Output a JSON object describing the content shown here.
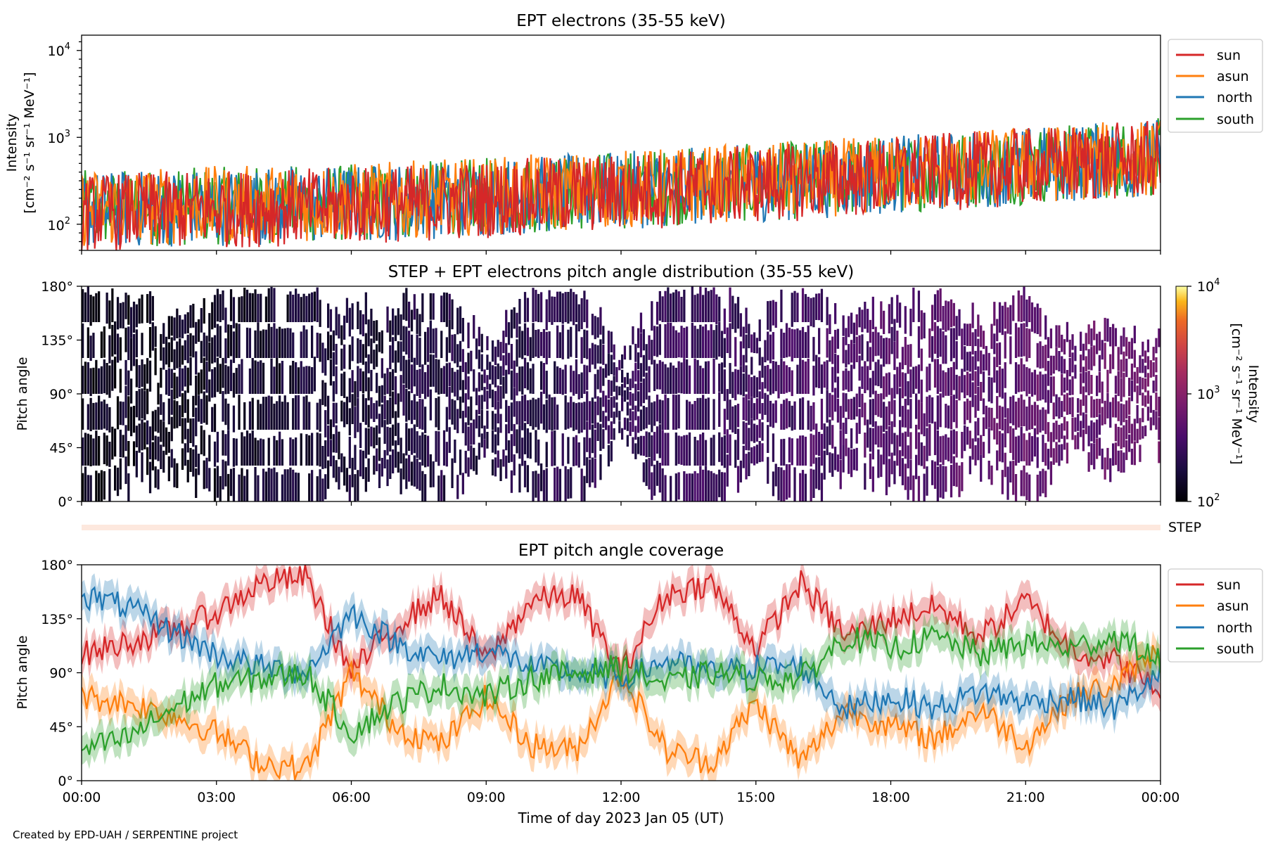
{
  "figure": {
    "footer": "Created by EPD-UAH / SERPENTINE project",
    "xlabel": "Time of day 2023 Jan 05 (UT)",
    "x_ticks": [
      "00:00",
      "03:00",
      "06:00",
      "09:00",
      "12:00",
      "15:00",
      "18:00",
      "21:00",
      "00:00"
    ]
  },
  "colors": {
    "sun": "#d62728",
    "asun": "#ff7f0e",
    "north": "#1f77b4",
    "south": "#2ca02c"
  },
  "chart_data": [
    {
      "type": "line",
      "title": "EPT electrons (35-55 keV)",
      "ylabel_line1": "Intensity",
      "ylabel_line2": "[cm⁻² s⁻¹ sr⁻¹ MeV⁻¹]",
      "yscale": "log",
      "ylim": [
        50,
        15000
      ],
      "y_ticks": [
        "10",
        "10",
        "10"
      ],
      "y_tick_exponents": [
        "2",
        "3",
        "4"
      ],
      "x_range_hours": [
        0,
        24
      ],
      "legend": "top-right (outside)",
      "series": [
        {
          "name": "sun",
          "x_hours": [
            0,
            2,
            4,
            6,
            8,
            10,
            12,
            14,
            16,
            18,
            20,
            22,
            24
          ],
          "values": [
            150,
            160,
            170,
            180,
            200,
            230,
            260,
            300,
            340,
            400,
            470,
            550,
            620
          ]
        },
        {
          "name": "asun",
          "x_hours": [
            0,
            2,
            4,
            6,
            8,
            10,
            12,
            14,
            16,
            18,
            20,
            22,
            24
          ],
          "values": [
            170,
            180,
            190,
            200,
            220,
            250,
            280,
            320,
            360,
            420,
            490,
            570,
            640
          ]
        },
        {
          "name": "north",
          "x_hours": [
            0,
            2,
            4,
            6,
            8,
            10,
            12,
            14,
            16,
            18,
            20,
            22,
            24
          ],
          "values": [
            160,
            170,
            180,
            190,
            210,
            240,
            270,
            310,
            350,
            410,
            480,
            560,
            650
          ]
        },
        {
          "name": "south",
          "x_hours": [
            0,
            2,
            4,
            6,
            8,
            10,
            12,
            14,
            16,
            18,
            20,
            22,
            24
          ],
          "values": [
            165,
            175,
            185,
            195,
            215,
            245,
            275,
            315,
            355,
            415,
            485,
            565,
            660
          ]
        }
      ]
    },
    {
      "type": "heatmap",
      "title": "STEP + EPT electrons pitch angle distribution (35-55 keV)",
      "ylabel": "Pitch angle",
      "ylim": [
        0,
        180
      ],
      "y_ticks": [
        "0°",
        "45°",
        "90°",
        "135°",
        "180°"
      ],
      "x_range_hours": [
        0,
        24
      ],
      "colorbar": {
        "label_line1": "Intensity",
        "label_line2": "[cm⁻² s⁻¹ sr⁻¹ MeV⁻¹]",
        "scale": "log",
        "range": [
          100,
          10000
        ],
        "ticks": [
          "10",
          "10",
          "10"
        ],
        "tick_exponents": [
          "2",
          "3",
          "4"
        ],
        "colormap": "inferno"
      },
      "mean_intensity": {
        "x_hours": [
          0,
          3,
          6,
          9,
          12,
          15,
          18,
          21,
          24
        ],
        "values": [
          130,
          150,
          180,
          220,
          260,
          320,
          420,
          520,
          620
        ]
      }
    },
    {
      "type": "bar",
      "label": "STEP"
    },
    {
      "type": "line",
      "title": "EPT pitch angle coverage",
      "ylabel": "Pitch angle",
      "ylim": [
        0,
        180
      ],
      "y_ticks": [
        "0°",
        "45°",
        "90°",
        "135°",
        "180°"
      ],
      "x_range_hours": [
        0,
        24
      ],
      "legend": "top-right (outside)",
      "series": [
        {
          "name": "sun",
          "x_hours": [
            0,
            1,
            2,
            3,
            4,
            5,
            6,
            7,
            8,
            9,
            10,
            11,
            12,
            13,
            14,
            15,
            16,
            17,
            18,
            19,
            20,
            21,
            22,
            23,
            24
          ],
          "values": [
            105,
            115,
            125,
            140,
            165,
            170,
            90,
            130,
            155,
            100,
            150,
            155,
            90,
            155,
            165,
            110,
            165,
            120,
            135,
            145,
            120,
            150,
            110,
            100,
            75
          ]
        },
        {
          "name": "asun",
          "x_hours": [
            0,
            1,
            2,
            3,
            4,
            5,
            6,
            7,
            8,
            9,
            10,
            11,
            12,
            13,
            14,
            15,
            16,
            17,
            18,
            19,
            20,
            21,
            22,
            23,
            24
          ],
          "values": [
            70,
            65,
            55,
            40,
            15,
            10,
            90,
            45,
            30,
            70,
            30,
            25,
            90,
            25,
            15,
            65,
            15,
            60,
            45,
            35,
            60,
            30,
            70,
            80,
            110
          ]
        },
        {
          "name": "north",
          "x_hours": [
            0,
            1,
            2,
            3,
            4,
            5,
            6,
            7,
            8,
            9,
            10,
            11,
            12,
            13,
            14,
            15,
            16,
            17,
            18,
            19,
            20,
            21,
            22,
            23,
            24
          ],
          "values": [
            155,
            145,
            125,
            105,
            95,
            90,
            140,
            115,
            100,
            110,
            95,
            90,
            85,
            100,
            90,
            95,
            95,
            60,
            70,
            60,
            75,
            65,
            70,
            60,
            90
          ]
        },
        {
          "name": "south",
          "x_hours": [
            0,
            1,
            2,
            3,
            4,
            5,
            6,
            7,
            8,
            9,
            10,
            11,
            12,
            13,
            14,
            15,
            16,
            17,
            18,
            19,
            20,
            21,
            22,
            23,
            24
          ],
          "values": [
            25,
            35,
            60,
            80,
            85,
            90,
            40,
            65,
            80,
            70,
            85,
            90,
            95,
            80,
            90,
            85,
            85,
            120,
            110,
            120,
            105,
            115,
            110,
            120,
            100
          ]
        }
      ]
    }
  ]
}
